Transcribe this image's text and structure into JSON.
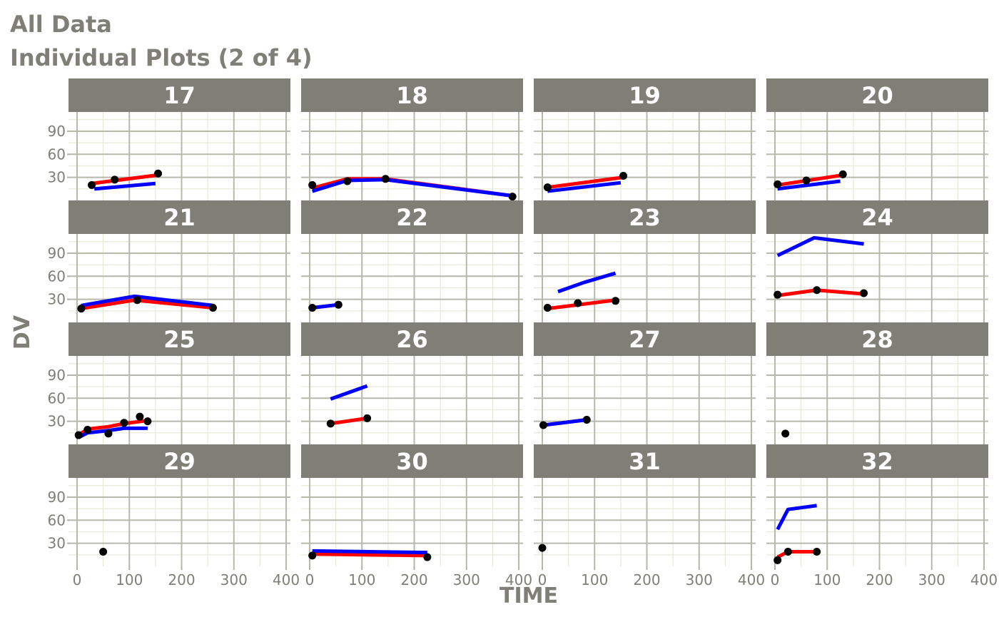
{
  "title": "All Data",
  "subtitle": "Individual Plots (2 of 4)",
  "chart_data": {
    "type": "line",
    "facet_layout": "4x4 grid",
    "xlabel": "TIME",
    "ylabel": "DV",
    "xlim": [
      0,
      400
    ],
    "ylim": [
      0,
      115
    ],
    "x_ticks": [
      0,
      100,
      200,
      300,
      400
    ],
    "y_ticks": [
      30,
      60,
      90
    ],
    "x_tick_labels": [
      "0",
      "100",
      "200",
      "300",
      "400"
    ],
    "y_tick_labels": [
      "30",
      "60",
      "90"
    ],
    "grid": true,
    "colors": {
      "points": "#000000",
      "red_line": "#ff0000",
      "blue_line": "#0000ff",
      "strip": "#7f7f77",
      "grid_major": "#b8b8ad",
      "grid_minor": "#e8e8da"
    },
    "panels": [
      {
        "id": "17",
        "points": [
          [
            28,
            20
          ],
          [
            72,
            27
          ],
          [
            155,
            35
          ]
        ],
        "red": [
          [
            28,
            22
          ],
          [
            155,
            33
          ]
        ],
        "blue": [
          [
            33,
            15
          ],
          [
            150,
            22
          ]
        ]
      },
      {
        "id": "18",
        "points": [
          [
            5,
            20
          ],
          [
            72,
            25
          ],
          [
            145,
            28
          ],
          [
            388,
            5
          ]
        ],
        "red": [
          [
            5,
            16
          ],
          [
            72,
            28
          ],
          [
            145,
            28
          ],
          [
            388,
            6
          ]
        ],
        "blue": [
          [
            5,
            12
          ],
          [
            72,
            26
          ],
          [
            145,
            27
          ],
          [
            388,
            6
          ]
        ]
      },
      {
        "id": "19",
        "points": [
          [
            10,
            17
          ],
          [
            155,
            32
          ]
        ],
        "red": [
          [
            10,
            17
          ],
          [
            155,
            30
          ]
        ],
        "blue": [
          [
            10,
            12
          ],
          [
            150,
            23
          ]
        ]
      },
      {
        "id": "20",
        "points": [
          [
            5,
            21
          ],
          [
            60,
            26
          ],
          [
            130,
            34
          ]
        ],
        "red": [
          [
            5,
            20
          ],
          [
            130,
            33
          ]
        ],
        "blue": [
          [
            5,
            15
          ],
          [
            125,
            25
          ]
        ]
      },
      {
        "id": "21",
        "points": [
          [
            8,
            18
          ],
          [
            115,
            29
          ],
          [
            260,
            19
          ]
        ],
        "red": [
          [
            8,
            18
          ],
          [
            110,
            29
          ],
          [
            260,
            19
          ]
        ],
        "blue": [
          [
            8,
            22
          ],
          [
            110,
            34
          ],
          [
            260,
            22
          ]
        ]
      },
      {
        "id": "22",
        "points": [
          [
            5,
            19
          ],
          [
            55,
            23
          ]
        ],
        "red": [
          [
            5,
            19
          ],
          [
            55,
            23
          ]
        ],
        "blue": [
          [
            5,
            19
          ],
          [
            55,
            23
          ]
        ]
      },
      {
        "id": "23",
        "points": [
          [
            10,
            19
          ],
          [
            68,
            25
          ],
          [
            140,
            28
          ]
        ],
        "red": [
          [
            10,
            18
          ],
          [
            140,
            29
          ]
        ],
        "blue": [
          [
            30,
            40
          ],
          [
            80,
            52
          ],
          [
            140,
            64
          ]
        ]
      },
      {
        "id": "24",
        "points": [
          [
            5,
            36
          ],
          [
            80,
            42
          ],
          [
            170,
            38
          ]
        ],
        "red": [
          [
            5,
            35
          ],
          [
            80,
            42
          ],
          [
            170,
            37
          ]
        ],
        "blue": [
          [
            5,
            87
          ],
          [
            75,
            110
          ],
          [
            170,
            102
          ]
        ]
      },
      {
        "id": "25",
        "points": [
          [
            3,
            12
          ],
          [
            20,
            19
          ],
          [
            60,
            14
          ],
          [
            90,
            28
          ],
          [
            120,
            36
          ],
          [
            135,
            30
          ]
        ],
        "red": [
          [
            3,
            12
          ],
          [
            20,
            20
          ],
          [
            60,
            23
          ],
          [
            90,
            27
          ],
          [
            135,
            31
          ]
        ],
        "blue": [
          [
            3,
            9
          ],
          [
            20,
            15
          ],
          [
            60,
            18
          ],
          [
            90,
            21
          ],
          [
            135,
            21
          ]
        ]
      },
      {
        "id": "26",
        "points": [
          [
            40,
            27
          ],
          [
            110,
            34
          ]
        ],
        "red": [
          [
            40,
            27
          ],
          [
            110,
            34
          ]
        ],
        "blue": [
          [
            40,
            59
          ],
          [
            110,
            76
          ]
        ]
      },
      {
        "id": "27",
        "points": [
          [
            2,
            25
          ],
          [
            85,
            32
          ]
        ],
        "red": [
          [
            2,
            25
          ],
          [
            85,
            32
          ]
        ],
        "blue": [
          [
            2,
            25
          ],
          [
            85,
            32
          ]
        ]
      },
      {
        "id": "28",
        "points": [
          [
            20,
            14
          ]
        ],
        "red": [],
        "blue": []
      },
      {
        "id": "29",
        "points": [
          [
            50,
            19
          ]
        ],
        "red": [],
        "blue": []
      },
      {
        "id": "30",
        "points": [
          [
            5,
            14
          ],
          [
            225,
            12
          ]
        ],
        "red": [
          [
            5,
            16
          ],
          [
            225,
            14
          ]
        ],
        "blue": [
          [
            5,
            20
          ],
          [
            225,
            18
          ]
        ]
      },
      {
        "id": "31",
        "points": [
          [
            0,
            24
          ]
        ],
        "red": [],
        "blue": []
      },
      {
        "id": "32",
        "points": [
          [
            5,
            8
          ],
          [
            25,
            19
          ],
          [
            80,
            19
          ]
        ],
        "red": [
          [
            5,
            12
          ],
          [
            25,
            19
          ],
          [
            80,
            19
          ]
        ],
        "blue": [
          [
            5,
            48
          ],
          [
            25,
            74
          ],
          [
            80,
            79
          ]
        ]
      }
    ]
  }
}
